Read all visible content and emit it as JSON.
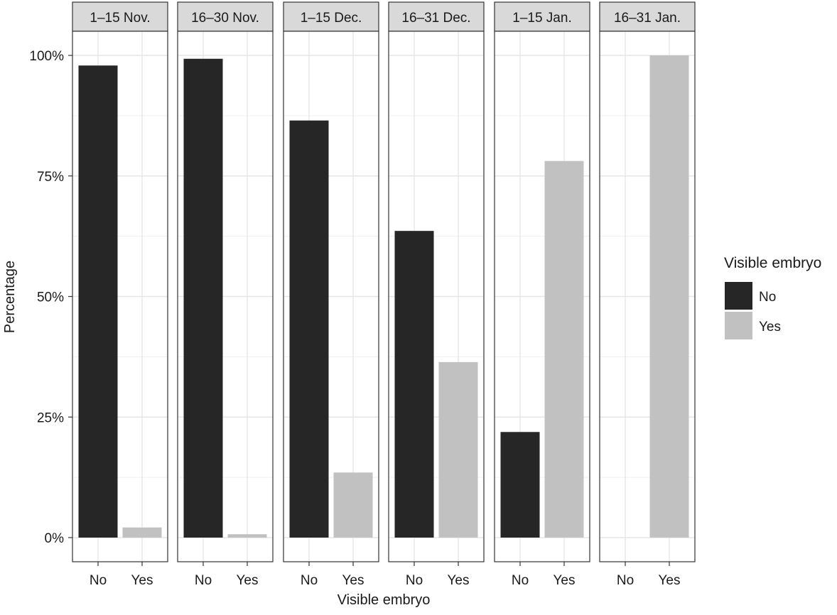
{
  "chart_data": {
    "type": "bar",
    "facets": [
      "1–15 Nov.",
      "16–30 Nov.",
      "1–15 Dec.",
      "16–31 Dec.",
      "1–15 Jan.",
      "16–31 Jan."
    ],
    "categories": [
      "No",
      "Yes"
    ],
    "values": [
      [
        97.9,
        2.1
      ],
      [
        99.3,
        0.7
      ],
      [
        86.5,
        13.5
      ],
      [
        63.6,
        36.4
      ],
      [
        21.9,
        78.1
      ],
      [
        0,
        100
      ]
    ],
    "ylim": [
      0,
      100
    ],
    "yticks": [
      0,
      25,
      50,
      75,
      100
    ],
    "ytick_labels": [
      "0%",
      "25%",
      "50%",
      "75%",
      "100%"
    ],
    "xlabel": "Visible embryo",
    "ylabel": "Percentage",
    "grid": true,
    "legend": {
      "title": "Visible embryo",
      "position": "right",
      "entries": [
        {
          "label": "No",
          "color": "#262626"
        },
        {
          "label": "Yes",
          "color": "#c1c1c1"
        }
      ]
    },
    "colors": {
      "No": "#262626",
      "Yes": "#c1c1c1"
    }
  }
}
